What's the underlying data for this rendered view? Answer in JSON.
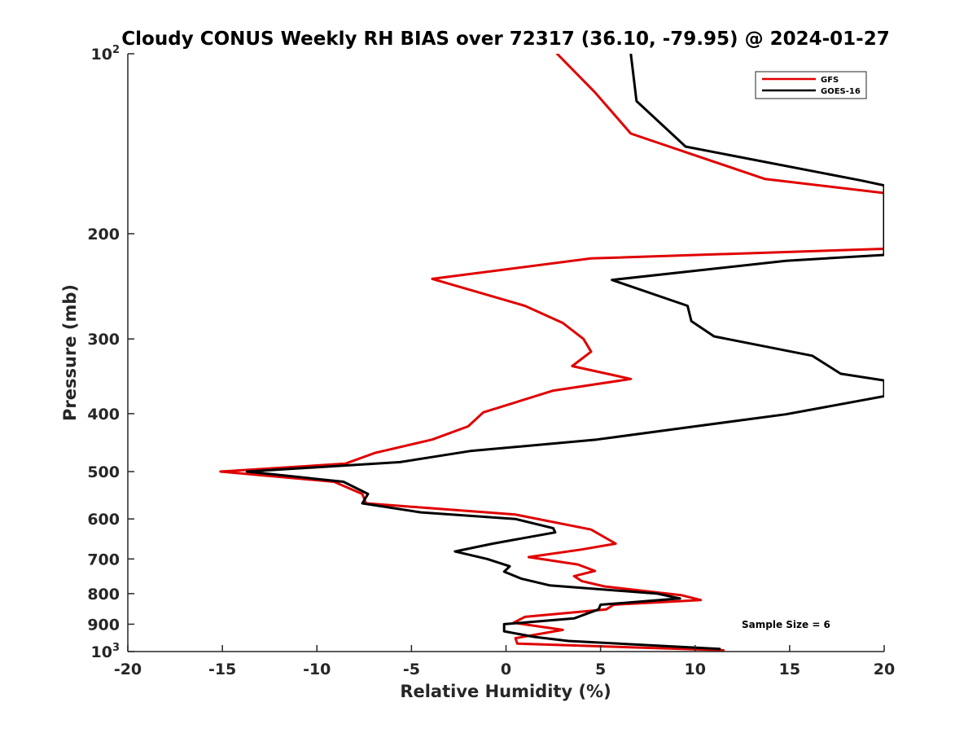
{
  "chart_data": {
    "type": "line",
    "title": "Cloudy CONUS Weekly RH BIAS over 72317 (36.10, -79.95) @ 2024-01-27",
    "xlabel": "Relative Humidity (%)",
    "ylabel": "Pressure (mb)",
    "xlim": [
      -20,
      20
    ],
    "ylim": [
      100,
      1000
    ],
    "y_scale": "log",
    "y_reversed": true,
    "grid": false,
    "legend_position": "top-right",
    "x_ticks": [
      "-20",
      "-15",
      "-10",
      "-5",
      "0",
      "5",
      "10",
      "15",
      "20"
    ],
    "y_ticks": [
      "200",
      "300",
      "400",
      "500",
      "600",
      "700",
      "800",
      "900"
    ],
    "y_tick_values": [
      200,
      300,
      400,
      500,
      600,
      700,
      800,
      900
    ],
    "y_ends": [
      {
        "value": 100,
        "base": "10",
        "exp": "2"
      },
      {
        "value": 1000,
        "base": "10",
        "exp": "3"
      }
    ],
    "series": [
      {
        "name": "GFS",
        "color": "#e00000",
        "points": [
          [
            2.7,
            100
          ],
          [
            4.7,
            116
          ],
          [
            6.6,
            136
          ],
          [
            13.7,
            162
          ],
          [
            20.0,
            171
          ],
          [
            20.0,
            212
          ],
          [
            4.5,
            220
          ],
          [
            -3.9,
            238
          ],
          [
            1.0,
            264
          ],
          [
            3.0,
            282
          ],
          [
            4.1,
            300
          ],
          [
            4.5,
            315
          ],
          [
            3.5,
            333
          ],
          [
            6.6,
            350
          ],
          [
            2.5,
            366
          ],
          [
            -1.2,
            398
          ],
          [
            -2.0,
            420
          ],
          [
            -3.9,
            442
          ],
          [
            -6.9,
            465
          ],
          [
            -8.5,
            485
          ],
          [
            -15.1,
            500
          ],
          [
            -9.1,
            520
          ],
          [
            -7.6,
            545
          ],
          [
            -7.4,
            565
          ],
          [
            0.5,
            590
          ],
          [
            4.5,
            625
          ],
          [
            5.8,
            660
          ],
          [
            4.0,
            675
          ],
          [
            1.2,
            695
          ],
          [
            3.8,
            715
          ],
          [
            4.7,
            733
          ],
          [
            3.6,
            748
          ],
          [
            4.0,
            762
          ],
          [
            5.2,
            778
          ],
          [
            9.3,
            805
          ],
          [
            10.3,
            820
          ],
          [
            5.7,
            835
          ],
          [
            5.3,
            850
          ],
          [
            1.0,
            875
          ],
          [
            0.4,
            895
          ],
          [
            3.0,
            920
          ],
          [
            0.5,
            950
          ],
          [
            0.6,
            970
          ],
          [
            11.5,
            995
          ]
        ]
      },
      {
        "name": "GOES-16",
        "color": "#000000",
        "points": [
          [
            6.6,
            100
          ],
          [
            6.9,
            120
          ],
          [
            9.5,
            143
          ],
          [
            18.8,
            163
          ],
          [
            20.0,
            166
          ],
          [
            20.0,
            217
          ],
          [
            14.8,
            222
          ],
          [
            5.6,
            239
          ],
          [
            9.6,
            264
          ],
          [
            9.8,
            280
          ],
          [
            11.0,
            297
          ],
          [
            16.2,
            320
          ],
          [
            17.7,
            343
          ],
          [
            20.0,
            352
          ],
          [
            20.0,
            374
          ],
          [
            14.8,
            401
          ],
          [
            10.0,
            420
          ],
          [
            4.8,
            442
          ],
          [
            -1.9,
            462
          ],
          [
            -5.6,
            482
          ],
          [
            -13.7,
            500
          ],
          [
            -8.6,
            520
          ],
          [
            -7.3,
            545
          ],
          [
            -7.6,
            565
          ],
          [
            -4.5,
            585
          ],
          [
            0.5,
            600
          ],
          [
            2.5,
            622
          ],
          [
            2.6,
            632
          ],
          [
            -0.7,
            660
          ],
          [
            -2.7,
            680
          ],
          [
            -1.0,
            700
          ],
          [
            0.2,
            720
          ],
          [
            -0.1,
            735
          ],
          [
            0.8,
            755
          ],
          [
            2.3,
            775
          ],
          [
            8.0,
            800
          ],
          [
            9.2,
            815
          ],
          [
            5.0,
            835
          ],
          [
            4.9,
            850
          ],
          [
            3.6,
            880
          ],
          [
            -0.1,
            900
          ],
          [
            -0.1,
            925
          ],
          [
            1.5,
            945
          ],
          [
            3.3,
            960
          ],
          [
            11.3,
            990
          ]
        ]
      }
    ],
    "annotations": [
      {
        "text": "Sample Size = 6"
      }
    ]
  }
}
